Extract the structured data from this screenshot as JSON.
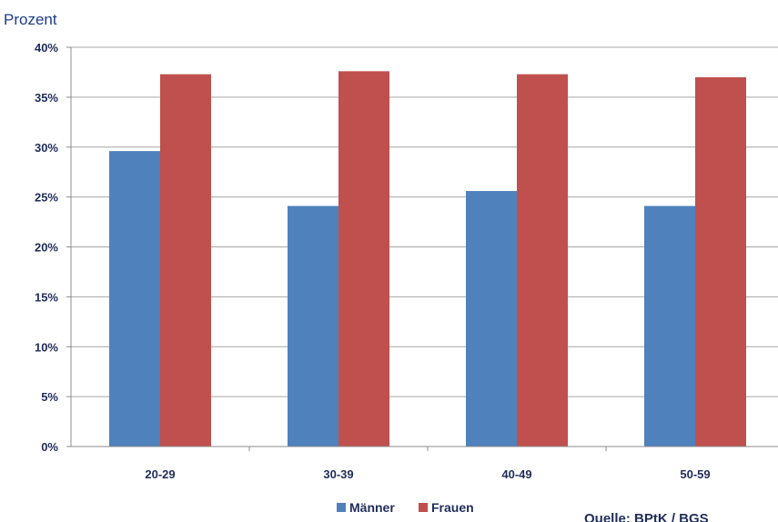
{
  "chart_data": {
    "type": "bar",
    "ylabel": "Prozent",
    "categories": [
      "20-29",
      "30-39",
      "40-49",
      "50-59"
    ],
    "series": [
      {
        "name": "Männer",
        "color": "#4f81bd",
        "values": [
          29.6,
          24.1,
          25.6,
          24.1
        ]
      },
      {
        "name": "Frauen",
        "color": "#c0504d",
        "values": [
          37.3,
          37.6,
          37.3,
          37.0
        ]
      }
    ],
    "yticks": [
      "0%",
      "5%",
      "10%",
      "15%",
      "20%",
      "25%",
      "30%",
      "35%",
      "40%"
    ],
    "ylim": [
      0,
      40
    ],
    "grid": true,
    "legend": "bottom-center",
    "source": "Quelle: BPtK / BGS"
  }
}
